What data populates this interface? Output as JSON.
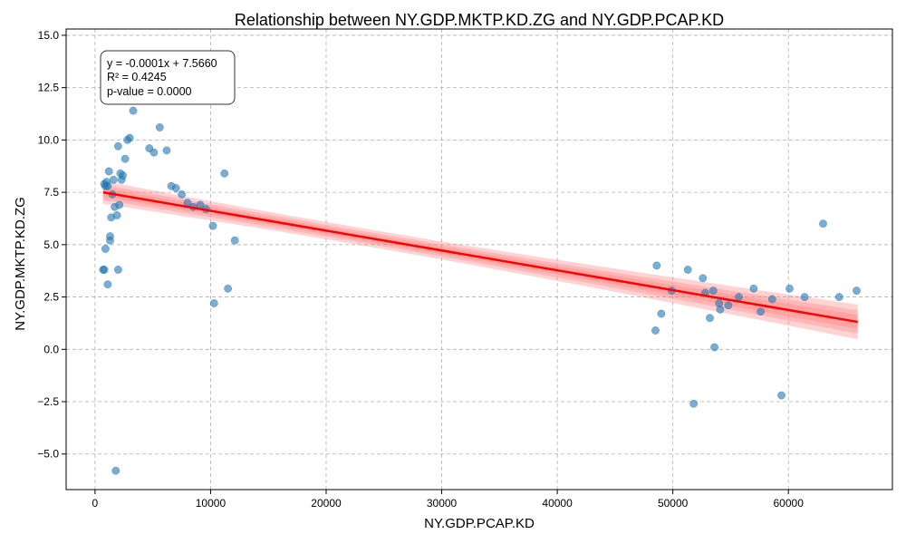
{
  "chart_data": {
    "type": "scatter",
    "title": "Relationship between NY.GDP.MKTP.KD.ZG and NY.GDP.PCAP.KD",
    "xlabel": "NY.GDP.PCAP.KD",
    "ylabel": "NY.GDP.MKTP.KD.ZG",
    "xlim": [
      -2500,
      69000
    ],
    "ylim": [
      -6.7,
      15.3
    ],
    "xticks": [
      0,
      10000,
      20000,
      30000,
      40000,
      50000,
      60000
    ],
    "yticks": [
      -5.0,
      -2.5,
      0.0,
      2.5,
      5.0,
      7.5,
      10.0,
      12.5,
      15.0
    ],
    "xtick_labels": [
      "0",
      "10000",
      "20000",
      "30000",
      "40000",
      "50000",
      "60000"
    ],
    "ytick_labels": [
      "−5.0",
      "−2.5",
      "0.0",
      "2.5",
      "5.0",
      "7.5",
      "10.0",
      "12.5",
      "15.0"
    ],
    "grid": true,
    "colors": {
      "points": "#1f77b4",
      "fit": "#ff0000",
      "band": "#ff8080"
    },
    "annotation": {
      "lines": [
        "y = -0.0001x + 7.5660",
        "R² = 0.4245",
        "p-value = 0.0000"
      ],
      "placement": "top-left"
    },
    "fit": {
      "slope": -9.48e-05,
      "intercept": 7.566,
      "x_range": [
        700,
        66000
      ]
    },
    "points": [
      {
        "x": 700,
        "y": 3.8
      },
      {
        "x": 800,
        "y": 3.8
      },
      {
        "x": 800,
        "y": 7.9
      },
      {
        "x": 900,
        "y": 4.8
      },
      {
        "x": 900,
        "y": 7.8
      },
      {
        "x": 1000,
        "y": 8.0
      },
      {
        "x": 1100,
        "y": 3.1
      },
      {
        "x": 1100,
        "y": 7.8
      },
      {
        "x": 1200,
        "y": 8.5
      },
      {
        "x": 1300,
        "y": 5.2
      },
      {
        "x": 1300,
        "y": 5.4
      },
      {
        "x": 1400,
        "y": 6.3
      },
      {
        "x": 1500,
        "y": 7.4
      },
      {
        "x": 1600,
        "y": 8.1
      },
      {
        "x": 1700,
        "y": 6.8
      },
      {
        "x": 1800,
        "y": -5.8
      },
      {
        "x": 1900,
        "y": 6.4
      },
      {
        "x": 2000,
        "y": 3.8
      },
      {
        "x": 2000,
        "y": 9.7
      },
      {
        "x": 2100,
        "y": 6.9
      },
      {
        "x": 2200,
        "y": 8.4
      },
      {
        "x": 2300,
        "y": 8.1
      },
      {
        "x": 2400,
        "y": 8.3
      },
      {
        "x": 2600,
        "y": 9.1
      },
      {
        "x": 2800,
        "y": 10.0
      },
      {
        "x": 3000,
        "y": 10.1
      },
      {
        "x": 3300,
        "y": 11.4
      },
      {
        "x": 4700,
        "y": 9.6
      },
      {
        "x": 5100,
        "y": 9.4
      },
      {
        "x": 5600,
        "y": 10.6
      },
      {
        "x": 6200,
        "y": 9.5
      },
      {
        "x": 6600,
        "y": 7.8
      },
      {
        "x": 7000,
        "y": 7.7
      },
      {
        "x": 7500,
        "y": 7.4
      },
      {
        "x": 8000,
        "y": 7.0
      },
      {
        "x": 8500,
        "y": 6.8
      },
      {
        "x": 9100,
        "y": 6.9
      },
      {
        "x": 9600,
        "y": 6.7
      },
      {
        "x": 10200,
        "y": 5.9
      },
      {
        "x": 10300,
        "y": 2.2
      },
      {
        "x": 11200,
        "y": 8.4
      },
      {
        "x": 11500,
        "y": 2.9
      },
      {
        "x": 12100,
        "y": 5.2
      },
      {
        "x": 48500,
        "y": 0.9
      },
      {
        "x": 48600,
        "y": 4.0
      },
      {
        "x": 49000,
        "y": 1.7
      },
      {
        "x": 49900,
        "y": 2.8
      },
      {
        "x": 51300,
        "y": 3.8
      },
      {
        "x": 51800,
        "y": -2.6
      },
      {
        "x": 52600,
        "y": 3.4
      },
      {
        "x": 52800,
        "y": 2.7
      },
      {
        "x": 53200,
        "y": 1.5
      },
      {
        "x": 53500,
        "y": 2.8
      },
      {
        "x": 53600,
        "y": 0.1
      },
      {
        "x": 54000,
        "y": 2.2
      },
      {
        "x": 54100,
        "y": 1.9
      },
      {
        "x": 54800,
        "y": 2.1
      },
      {
        "x": 55700,
        "y": 2.5
      },
      {
        "x": 57000,
        "y": 2.9
      },
      {
        "x": 57600,
        "y": 1.8
      },
      {
        "x": 58600,
        "y": 2.4
      },
      {
        "x": 59400,
        "y": -2.2
      },
      {
        "x": 60100,
        "y": 2.9
      },
      {
        "x": 61400,
        "y": 2.5
      },
      {
        "x": 63000,
        "y": 6.0
      },
      {
        "x": 64400,
        "y": 2.5
      },
      {
        "x": 65900,
        "y": 2.8
      }
    ]
  }
}
